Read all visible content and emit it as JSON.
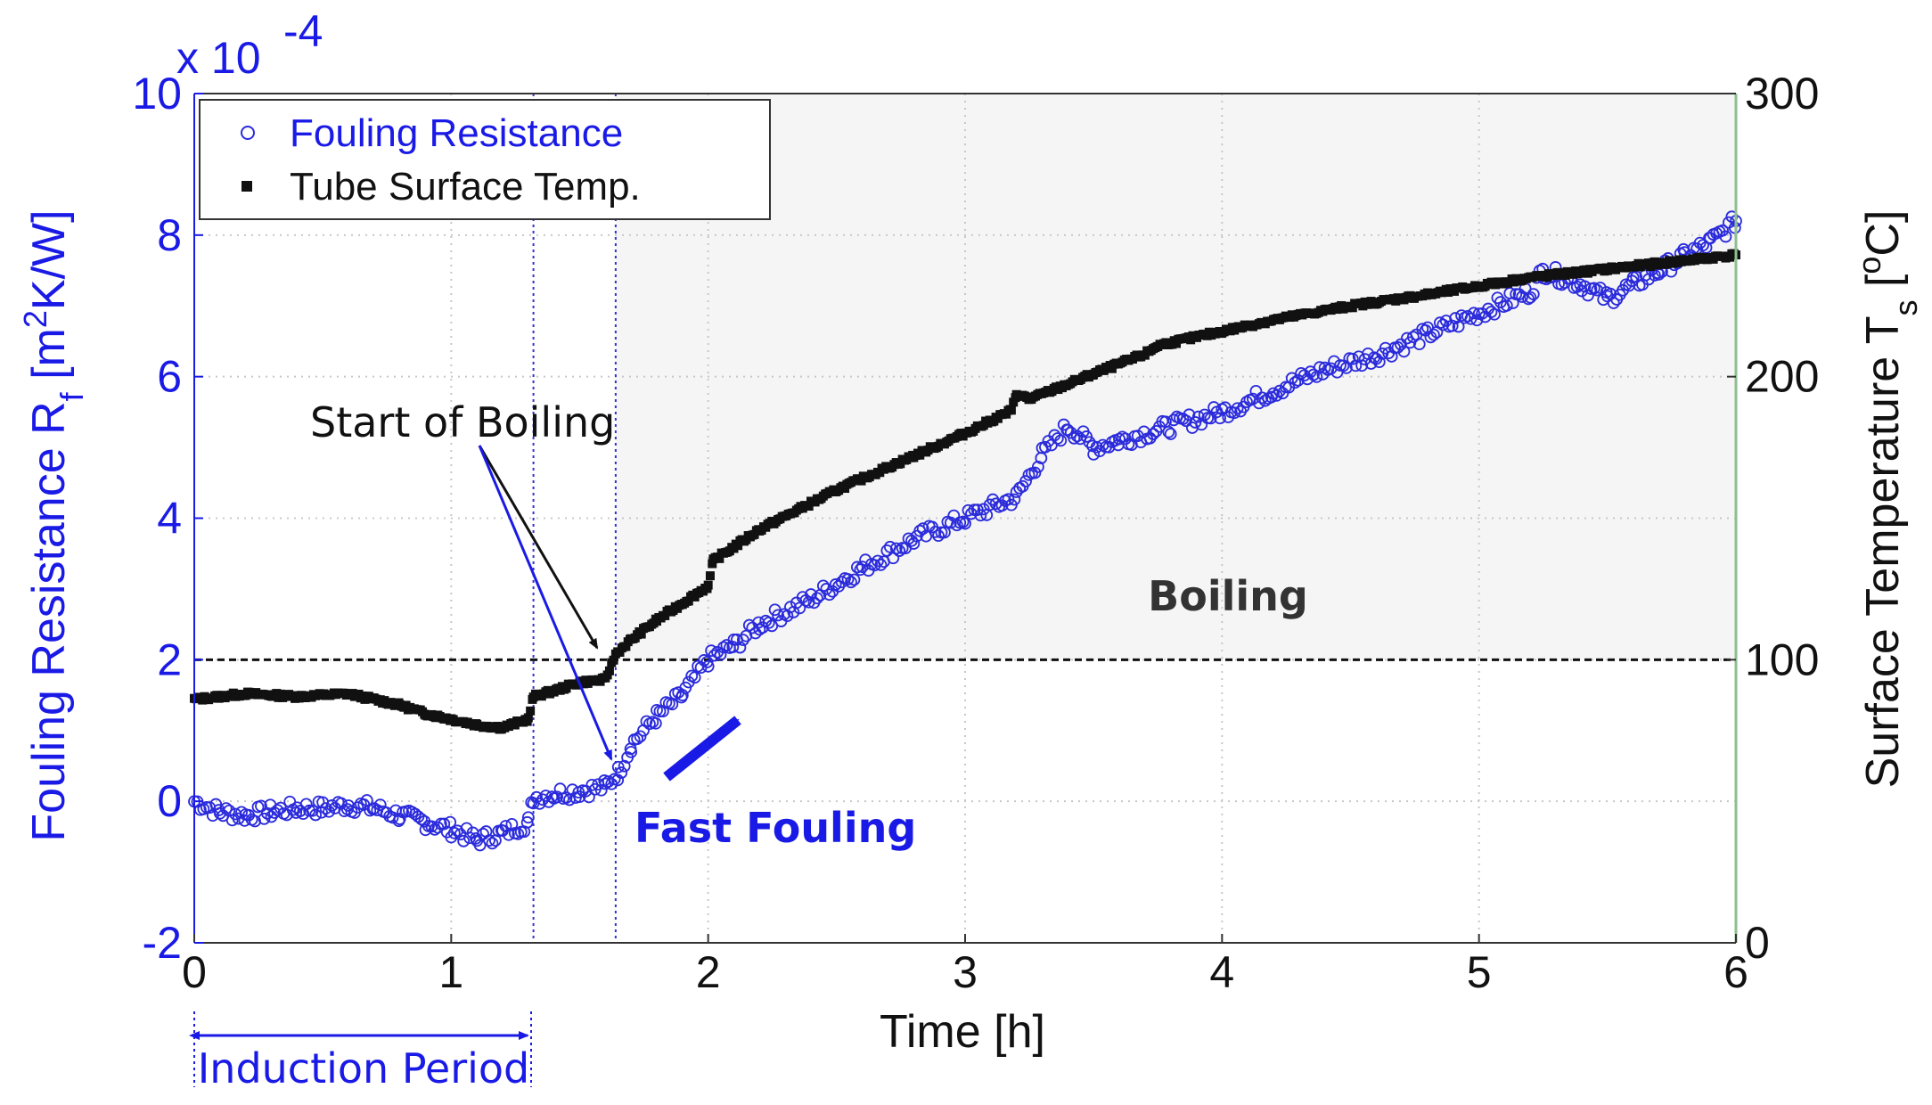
{
  "chart_data": {
    "type": "scatter",
    "title": "",
    "xlabel": "Time [h]",
    "ylabel_left": "Fouling Resistance R_f [m^2K/W]",
    "ylabel_right": "Surface Temperature T_s [°C]",
    "y_left_multiplier": "x 10",
    "y_left_exponent": "-4",
    "xlim": [
      0,
      6
    ],
    "ylim_left": [
      -2,
      10
    ],
    "ylim_right": [
      0,
      300
    ],
    "x_ticks": [
      "0",
      "1",
      "2",
      "3",
      "4",
      "5",
      "6"
    ],
    "y_left_ticks": [
      "-2",
      "0",
      "2",
      "4",
      "6",
      "8",
      "10"
    ],
    "y_right_ticks": [
      "0",
      "100",
      "200",
      "300"
    ],
    "grid": true,
    "legend": {
      "placement": "top-left",
      "entries": [
        "Fouling Resistance",
        "Tube Surface Temp."
      ]
    },
    "series": [
      {
        "name": "Fouling Resistance",
        "axis": "left",
        "marker": "open-circle",
        "color": "#2b2bdc",
        "x": [
          0,
          0.1,
          0.2,
          0.3,
          0.4,
          0.5,
          0.6,
          0.7,
          0.8,
          0.9,
          1.0,
          1.1,
          1.2,
          1.3,
          1.32,
          1.4,
          1.5,
          1.6,
          1.65,
          1.7,
          1.8,
          1.9,
          2.0,
          2.1,
          2.2,
          2.4,
          2.6,
          2.8,
          3.0,
          3.2,
          3.3,
          3.4,
          3.5,
          3.6,
          3.8,
          4.0,
          4.2,
          4.4,
          4.6,
          4.8,
          5.0,
          5.2,
          5.25,
          5.4,
          5.5,
          5.6,
          5.7,
          5.8,
          5.9,
          6.0
        ],
        "y": [
          0.0,
          -0.15,
          -0.2,
          -0.15,
          -0.1,
          -0.1,
          -0.05,
          -0.1,
          -0.2,
          -0.3,
          -0.4,
          -0.55,
          -0.45,
          -0.3,
          0.05,
          0.1,
          0.15,
          0.2,
          0.4,
          0.8,
          1.2,
          1.5,
          2.0,
          2.2,
          2.5,
          2.85,
          3.3,
          3.7,
          4.0,
          4.3,
          4.9,
          5.3,
          5.0,
          5.1,
          5.3,
          5.5,
          5.8,
          6.1,
          6.3,
          6.6,
          6.9,
          7.2,
          7.5,
          7.3,
          7.1,
          7.3,
          7.5,
          7.7,
          7.9,
          8.2
        ]
      },
      {
        "name": "Tube Surface Temp.",
        "axis": "right",
        "marker": "filled-square",
        "color": "#111111",
        "x": [
          0,
          0.2,
          0.4,
          0.6,
          0.7,
          0.8,
          0.9,
          1.0,
          1.1,
          1.2,
          1.3,
          1.32,
          1.4,
          1.5,
          1.6,
          1.64,
          1.7,
          1.8,
          1.9,
          2.0,
          2.02,
          2.2,
          2.5,
          2.8,
          3.0,
          3.18,
          3.2,
          3.25,
          3.5,
          3.7,
          3.75,
          4.0,
          4.2,
          4.5,
          4.8,
          5.0,
          5.2,
          5.5,
          5.8,
          6.0
        ],
        "y": [
          86,
          88,
          87,
          88,
          86,
          84,
          81,
          79,
          77,
          76,
          79,
          87,
          89,
          92,
          93,
          102,
          107,
          114,
          120,
          126,
          135,
          146,
          160,
          172,
          180,
          188,
          194,
          192,
          201,
          208,
          211,
          216,
          220,
          225,
          229,
          232,
          235,
          238,
          241,
          243
        ]
      }
    ],
    "reference_lines": [
      {
        "type": "horizontal",
        "axis": "right",
        "value": 100,
        "style": "dashed"
      },
      {
        "type": "vertical",
        "value": 1.32,
        "style": "dotted",
        "color": "#3333cc"
      },
      {
        "type": "vertical",
        "value": 1.64,
        "style": "dotted",
        "color": "#3333cc"
      }
    ],
    "shaded_region": {
      "label": "Boiling",
      "x_from": 1.64,
      "x_to": 6,
      "y_right_from": 100,
      "y_right_to": 300
    },
    "annotations": [
      {
        "text": "Start of Boiling",
        "color": "#111111"
      },
      {
        "text": "Fast Fouling",
        "color": "#1a1ae6"
      },
      {
        "text": "Boiling",
        "color": "#333333"
      },
      {
        "text": "Induction Period",
        "color": "#1a1ae6",
        "x_from": 0,
        "x_to": 1.32
      }
    ],
    "colors": {
      "left_axis": "#1a1ae6",
      "right_axis": "#111111",
      "right_spine": "#8fbf8f",
      "shade": "#f5f5f5"
    }
  }
}
